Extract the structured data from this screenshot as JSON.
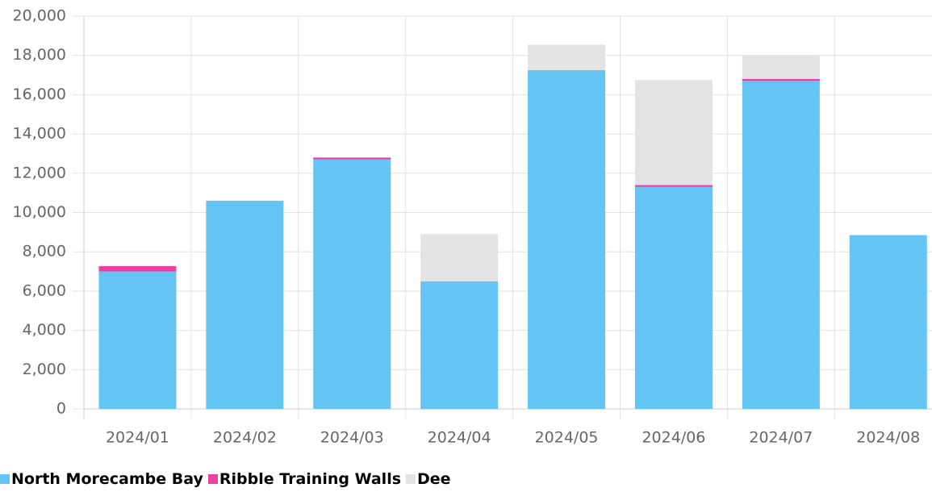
{
  "chart_data": {
    "type": "stacked_bar",
    "categories": [
      "2024/01",
      "2024/02",
      "2024/03",
      "2024/04",
      "2024/05",
      "2024/06",
      "2024/07",
      "2024/08"
    ],
    "series": [
      {
        "name": "North Morecambe Bay",
        "color": "#64c5f4",
        "values": [
          7000,
          10600,
          12700,
          6500,
          17250,
          11300,
          16700,
          8850
        ]
      },
      {
        "name": "Ribble Training Walls",
        "color": "#ee3ea2",
        "values": [
          270,
          0,
          100,
          0,
          0,
          100,
          100,
          0
        ]
      },
      {
        "name": "Dee",
        "color": "#e3e3e3",
        "values": [
          0,
          0,
          0,
          2400,
          1300,
          5350,
          1200,
          0
        ]
      }
    ],
    "ylim": [
      0,
      20000
    ],
    "yticks": [
      0,
      {
        "value": 2000,
        "label": "2,000"
      },
      {
        "value": 4000,
        "label": "4,000"
      },
      {
        "value": 6000,
        "label": "6,000"
      },
      {
        "value": 8000,
        "label": "8,000"
      },
      {
        "value": 10000,
        "label": "10,000"
      },
      {
        "value": 12000,
        "label": "12,000"
      },
      {
        "value": 14000,
        "label": "14,000"
      },
      {
        "value": 16000,
        "label": "16,000"
      },
      {
        "value": 18000,
        "label": "18,000"
      },
      {
        "value": 20000,
        "label": "20,000"
      }
    ],
    "grid": true,
    "legend": "bottom-left"
  }
}
